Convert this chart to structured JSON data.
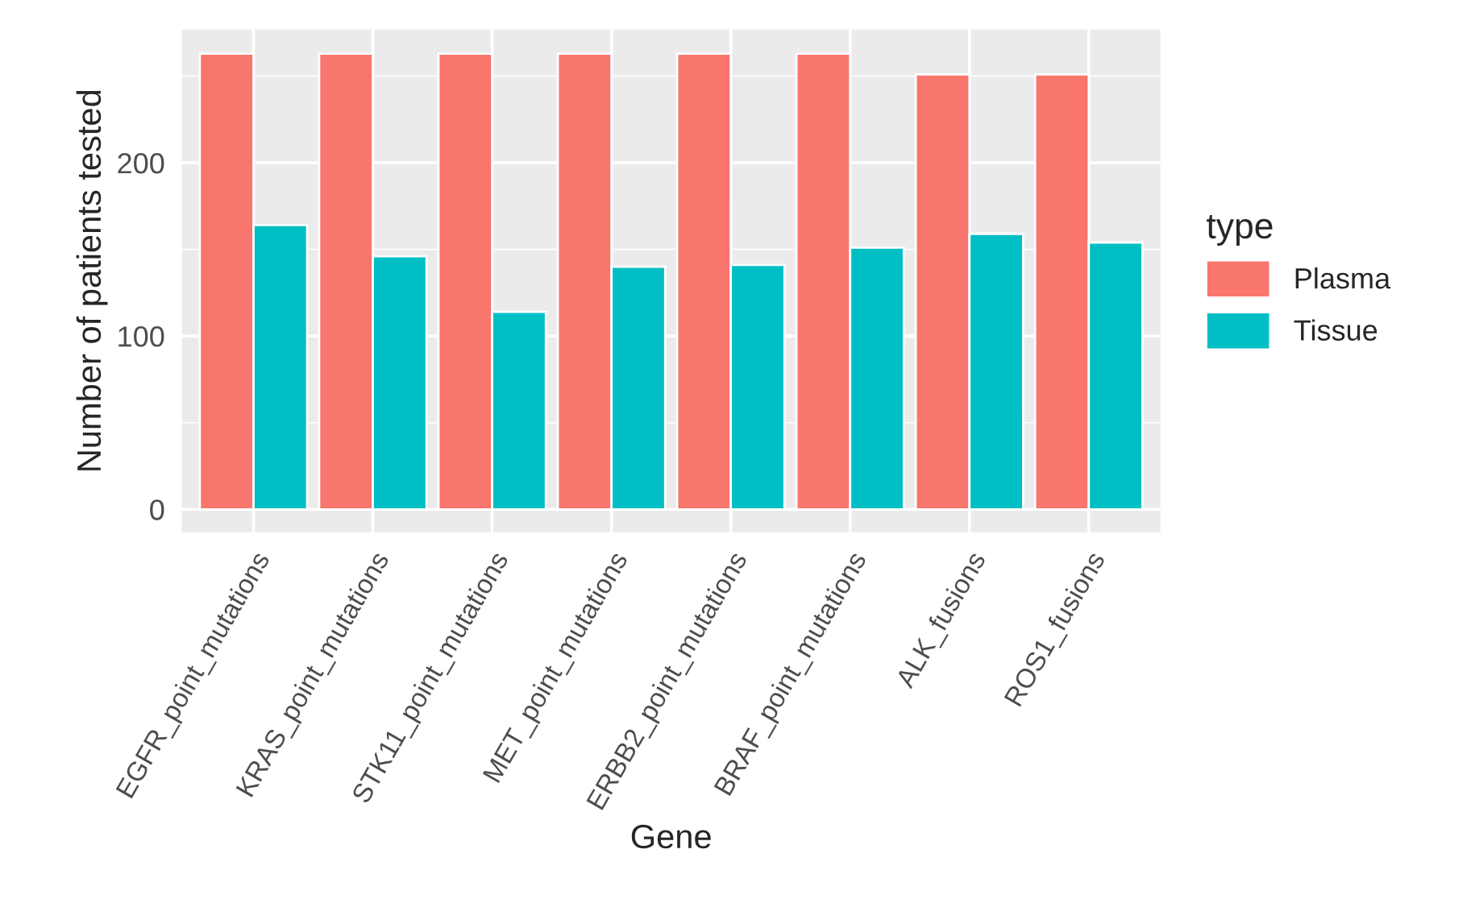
{
  "chart_data": {
    "type": "bar",
    "xlabel": "Gene",
    "ylabel": "Number of patients tested",
    "legend_title": "type",
    "categories": [
      "EGFR_point_mutations",
      "KRAS_point_mutations",
      "STK11_point_mutations",
      "MET_point_mutations",
      "ERBB2_point_mutations",
      "BRAF_point_mutations",
      "ALK_fusions",
      "ROS1_fusions"
    ],
    "series": [
      {
        "name": "Plasma",
        "color": "#f8766d",
        "values": [
          263,
          263,
          263,
          263,
          263,
          263,
          251,
          251
        ]
      },
      {
        "name": "Tissue",
        "color": "#00bfc4",
        "values": [
          164,
          146,
          114,
          140,
          141,
          151,
          159,
          154
        ]
      }
    ],
    "ylim": [
      -13.2,
      276.8
    ],
    "yticks": [
      0,
      100,
      200
    ],
    "grid": true,
    "legend": "right"
  }
}
